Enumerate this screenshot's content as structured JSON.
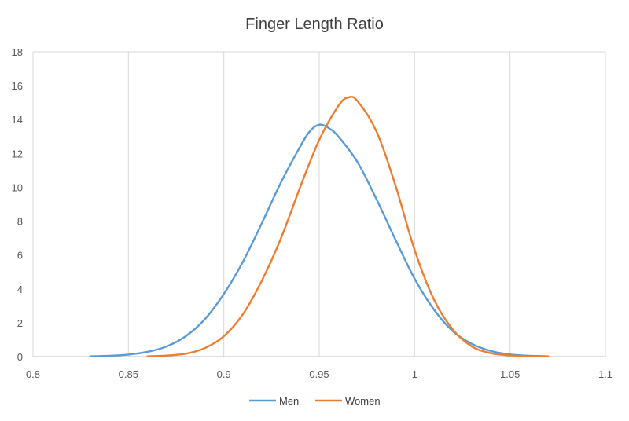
{
  "chart_data": {
    "type": "line",
    "title": "Finger Length Ratio",
    "xlim": [
      0.8,
      1.1
    ],
    "ylim": [
      0,
      18
    ],
    "x_ticks": [
      0.8,
      0.85,
      0.9,
      0.95,
      1.0,
      1.05,
      1.1
    ],
    "x_tick_labels": [
      "0.8",
      "0.85",
      "0.9",
      "0.95",
      "1",
      "1.05",
      "1.1"
    ],
    "y_ticks": [
      0,
      2,
      4,
      6,
      8,
      10,
      12,
      14,
      16,
      18
    ],
    "y_tick_labels": [
      "0",
      "2",
      "4",
      "6",
      "8",
      "10",
      "12",
      "14",
      "16",
      "18"
    ],
    "grid": "vertical",
    "legend_position": "bottom",
    "series": [
      {
        "name": "Men",
        "color": "#5b9bd5",
        "x": [
          0.83,
          0.84,
          0.85,
          0.86,
          0.87,
          0.88,
          0.89,
          0.9,
          0.91,
          0.92,
          0.93,
          0.94,
          0.945,
          0.95,
          0.955,
          0.96,
          0.97,
          0.98,
          0.99,
          1.0,
          1.01,
          1.02,
          1.03,
          1.04,
          1.05,
          1.06,
          1.07
        ],
        "y": [
          0.02,
          0.05,
          0.12,
          0.28,
          0.6,
          1.2,
          2.2,
          3.7,
          5.6,
          7.9,
          10.3,
          12.4,
          13.3,
          13.7,
          13.5,
          13.0,
          11.5,
          9.3,
          6.9,
          4.6,
          2.8,
          1.5,
          0.75,
          0.33,
          0.13,
          0.05,
          0.02
        ]
      },
      {
        "name": "Women",
        "color": "#ed7d31",
        "x": [
          0.86,
          0.87,
          0.88,
          0.89,
          0.9,
          0.91,
          0.92,
          0.93,
          0.94,
          0.95,
          0.96,
          0.965,
          0.97,
          0.98,
          0.99,
          1.0,
          1.01,
          1.02,
          1.03,
          1.04,
          1.05,
          1.06,
          1.07
        ],
        "y": [
          0.02,
          0.06,
          0.17,
          0.5,
          1.2,
          2.5,
          4.5,
          7.0,
          10.0,
          12.8,
          14.8,
          15.3,
          15.1,
          13.3,
          10.1,
          6.3,
          3.4,
          1.6,
          0.6,
          0.2,
          0.07,
          0.02,
          0.01
        ]
      }
    ]
  }
}
